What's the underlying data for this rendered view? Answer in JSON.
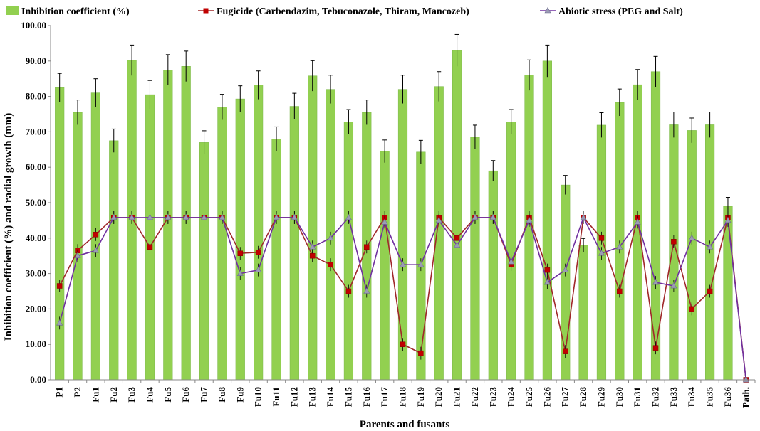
{
  "chart_data": {
    "type": "bar",
    "xlabel": "Parents and fusants",
    "ylabel": "Inhibition coefficient (%) and radial growth (mm)",
    "ylim": [
      0,
      100
    ],
    "yticks": [
      "0.00",
      "10.00",
      "20.00",
      "30.00",
      "40.00",
      "50.00",
      "60.00",
      "70.00",
      "80.00",
      "90.00",
      "100.00"
    ],
    "categories": [
      "P1",
      "P2",
      "Fu1",
      "Fu2",
      "Fu3",
      "Fu4",
      "Fu5",
      "Fu6",
      "Fu7",
      "Fu8",
      "Fu9",
      "Fu10",
      "Fu11",
      "Fu12",
      "Fu13",
      "Fu14",
      "Fu15",
      "Fu16",
      "Fu17",
      "Fu18",
      "Fu19",
      "Fu20",
      "Fu21",
      "Fu22",
      "Fu23",
      "Fu24",
      "Fu25",
      "Fu26",
      "Fu27",
      "Fu28",
      "Fu29",
      "Fu30",
      "Fu31",
      "Fu32",
      "Fu33",
      "Fu34",
      "Fu35",
      "Fu36",
      "Path."
    ],
    "legend_position": "top",
    "grid": false,
    "series": [
      {
        "name": "Inhibition coefficient (%)",
        "kind": "bar",
        "color": "#92D050",
        "values": [
          82.5,
          75.5,
          81.0,
          67.5,
          90.2,
          80.5,
          87.5,
          88.5,
          67.0,
          77.0,
          79.3,
          83.2,
          68.0,
          77.2,
          85.8,
          82.0,
          72.8,
          75.5,
          64.5,
          82.0,
          64.3,
          82.8,
          93.0,
          68.5,
          59.0,
          72.8,
          86.0,
          90.0,
          55.0,
          38.0,
          71.9,
          78.3,
          83.3,
          87.0,
          72.0,
          70.4,
          72.0,
          49.0,
          0
        ],
        "errors": [
          4.0,
          3.5,
          4.0,
          3.3,
          4.3,
          4.0,
          4.3,
          4.3,
          3.3,
          3.6,
          3.7,
          4.0,
          3.4,
          3.7,
          4.3,
          4.0,
          3.5,
          3.5,
          3.2,
          4.0,
          3.3,
          4.2,
          4.5,
          3.4,
          2.9,
          3.5,
          4.3,
          4.5,
          2.7,
          1.9,
          3.5,
          3.8,
          4.3,
          4.3,
          3.6,
          3.5,
          3.6,
          2.5,
          0
        ]
      },
      {
        "name": "Fugicide (Carbendazim, Tebuconazole, Thiram, Mancozeb)",
        "kind": "line",
        "color": "#C00000",
        "line_color": "#A0282A",
        "values": [
          26.5,
          36.5,
          41.0,
          45.8,
          45.8,
          37.5,
          45.8,
          45.8,
          45.8,
          45.8,
          35.7,
          36.0,
          45.8,
          45.8,
          35.0,
          32.5,
          25.0,
          37.5,
          45.8,
          10.0,
          7.5,
          45.8,
          40.0,
          45.8,
          45.8,
          32.5,
          45.8,
          31.0,
          8.0,
          45.8,
          40.0,
          25.0,
          45.8,
          9.0,
          39.0,
          20.0,
          25.0,
          45.8,
          0
        ]
      },
      {
        "name": "Abiotic stress (PEG and Salt)",
        "kind": "line",
        "color": "#9B9BB5",
        "line_color": "#7030A0",
        "values": [
          16.0,
          35.0,
          36.5,
          45.8,
          45.8,
          45.8,
          45.8,
          45.8,
          45.8,
          45.8,
          30.0,
          31.0,
          45.8,
          45.8,
          37.5,
          40.0,
          45.8,
          25.0,
          44.5,
          32.5,
          32.5,
          45.0,
          38.0,
          45.8,
          45.8,
          33.3,
          45.0,
          27.5,
          31.0,
          45.8,
          35.7,
          37.5,
          44.5,
          27.5,
          26.5,
          40.0,
          37.5,
          45.0,
          0
        ]
      }
    ]
  }
}
